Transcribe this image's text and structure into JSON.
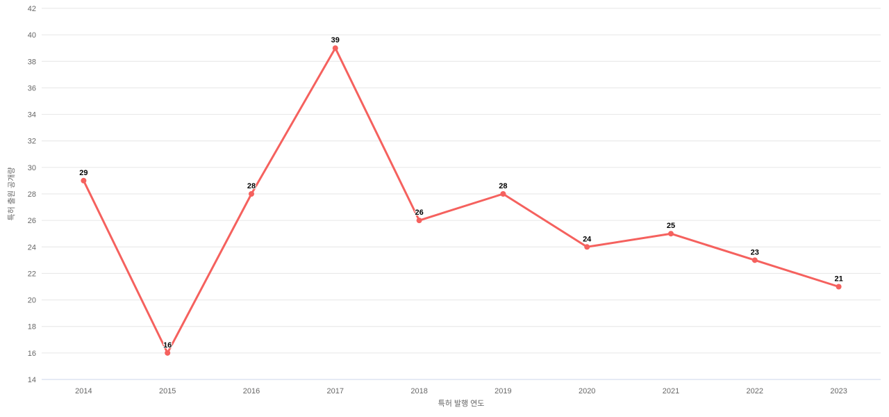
{
  "chart_data": {
    "type": "line",
    "categories": [
      "2014",
      "2015",
      "2016",
      "2017",
      "2018",
      "2019",
      "2020",
      "2021",
      "2022",
      "2023"
    ],
    "series": [
      {
        "name": "특허 출원 공개량",
        "values": [
          29,
          16,
          28,
          39,
          26,
          28,
          24,
          25,
          23,
          21
        ]
      }
    ],
    "title": "",
    "xlabel": "특허 발행 연도",
    "ylabel": "특허 출원 공개량",
    "ylim": [
      14,
      42
    ],
    "ytick_step": 2,
    "grid": "horizontal-only",
    "legend": "none",
    "data_labels": "shown above each point",
    "colors": {
      "series_line": "#f5615e",
      "series_marker": "#f5615e",
      "gridline": "#e6e6e6",
      "axis_line": "#ccd6eb",
      "tick_label": "#666666",
      "axis_title": "#666666",
      "data_label": "#000000",
      "background": "#ffffff"
    }
  }
}
